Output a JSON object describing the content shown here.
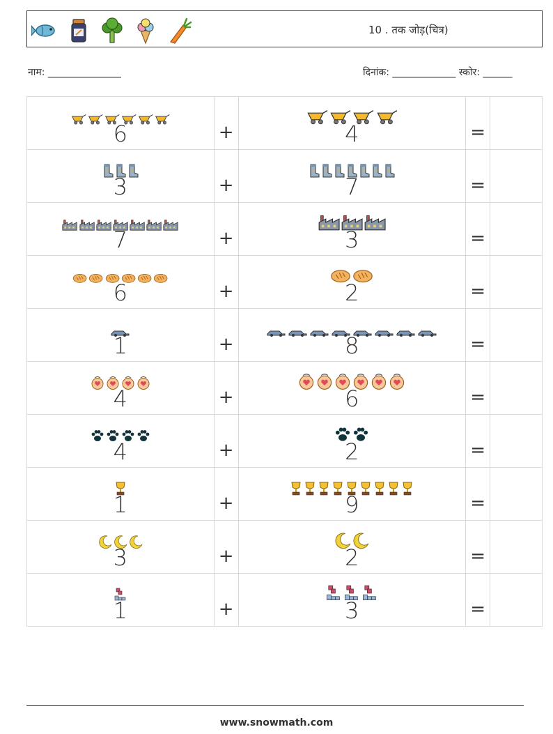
{
  "header": {
    "icons": [
      "fish-icon",
      "jar-icon",
      "broccoli-icon",
      "ice-cream-icon",
      "carrot-icon"
    ],
    "title": "10 . तक जोड़(चित्र)"
  },
  "info": {
    "name_label": "नाम: _______________",
    "date_score_label": "दिनांक: _____________  स्कोर: ______"
  },
  "symbols": {
    "plus": "+",
    "equals": "="
  },
  "problems": [
    {
      "a": 6,
      "b": 4,
      "icon": "wheelbarrow-icon"
    },
    {
      "a": 3,
      "b": 7,
      "icon": "boot-icon"
    },
    {
      "a": 7,
      "b": 3,
      "icon": "factory-icon"
    },
    {
      "a": 6,
      "b": 2,
      "icon": "bread-icon"
    },
    {
      "a": 1,
      "b": 8,
      "icon": "car-icon"
    },
    {
      "a": 4,
      "b": 6,
      "icon": "face-icon"
    },
    {
      "a": 4,
      "b": 2,
      "icon": "paw-icon"
    },
    {
      "a": 1,
      "b": 9,
      "icon": "trophy-icon"
    },
    {
      "a": 3,
      "b": 2,
      "icon": "moon-icon"
    },
    {
      "a": 1,
      "b": 3,
      "icon": "blocks-icon"
    }
  ],
  "footer": {
    "url": "www.snowmath.com"
  }
}
